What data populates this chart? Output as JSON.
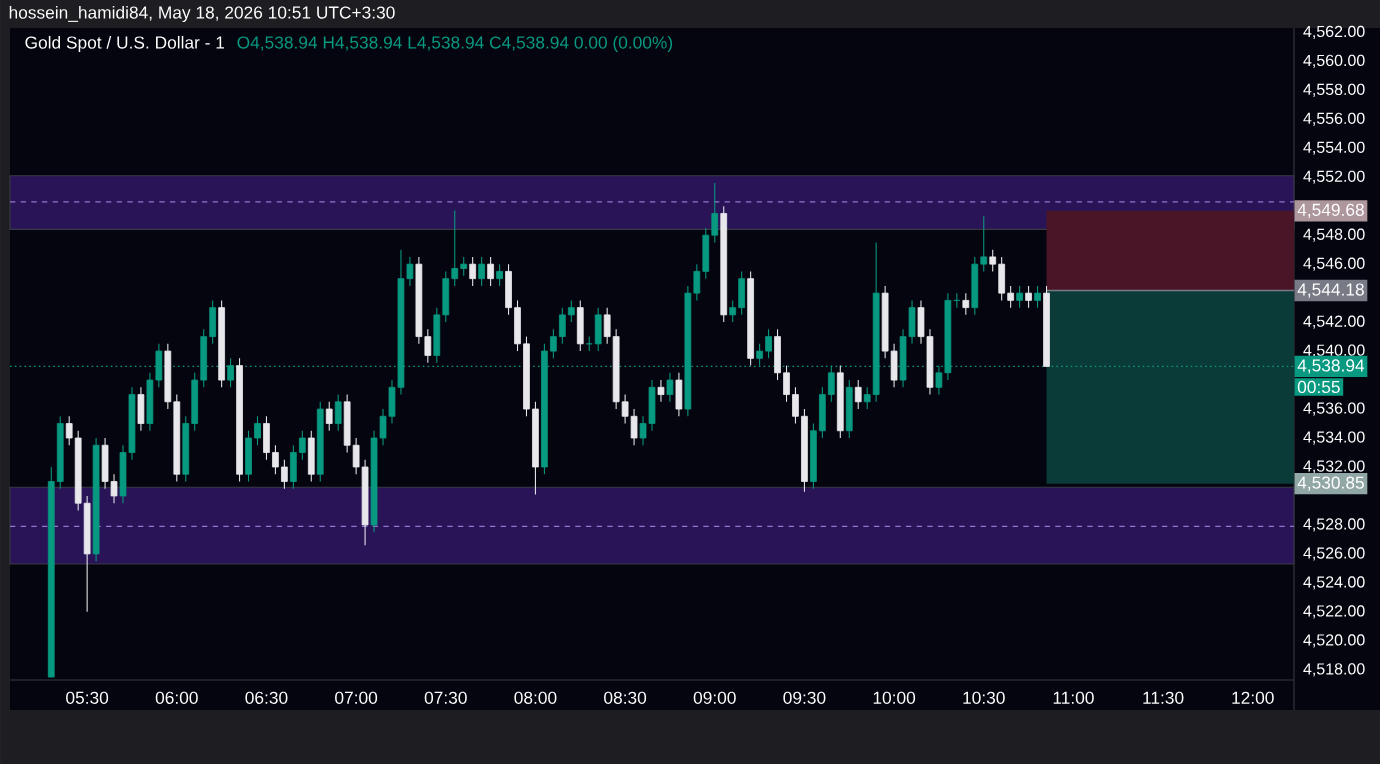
{
  "chart_data": {
    "type": "candlestick",
    "title": "Gold Spot / U.S. Dollar - 1",
    "subtitle": "O4,538.94 H4,538.94 L4,538.94 C4,538.94 0.00 (0.00%)",
    "annotations": [
      "hossein_hamidi84, May 18, 2026 10:51 UTC+3:30",
      "00:55"
    ],
    "x": [
      5.3,
      5.35,
      5.4,
      5.45,
      5.5,
      5.55,
      5.6,
      5.65,
      5.7,
      5.75,
      5.8,
      5.85,
      5.9,
      5.95,
      6.0,
      6.05,
      6.1,
      6.15,
      6.2,
      6.25,
      6.3,
      6.35,
      6.4,
      6.45,
      6.5,
      6.55,
      6.6,
      6.65,
      6.7,
      6.75,
      6.8,
      6.85,
      6.9,
      6.95,
      7.0,
      7.05,
      7.1,
      7.15,
      7.2,
      7.25,
      7.3,
      7.35,
      7.4,
      7.45,
      7.5,
      7.55,
      7.6,
      7.65,
      7.7,
      7.75,
      7.8,
      7.85,
      7.9,
      7.95,
      8.0,
      8.05,
      8.1,
      8.15,
      8.2,
      8.25,
      8.3,
      8.35,
      8.4,
      8.45,
      8.5,
      8.55,
      8.6,
      8.65,
      8.7,
      8.75,
      8.8,
      8.85,
      8.9,
      8.95,
      9.0,
      9.05,
      9.1,
      9.15,
      9.2,
      9.25,
      9.3,
      9.35,
      9.4,
      9.45,
      9.5,
      9.55,
      9.6,
      9.65,
      9.7,
      9.75,
      9.8,
      9.85,
      9.9,
      9.95,
      10.0,
      10.05,
      10.1,
      10.15,
      10.2,
      10.25,
      10.3,
      10.35,
      10.4,
      10.45,
      10.5,
      10.55,
      10.6,
      10.65,
      10.7,
      10.75,
      10.8,
      10.85
    ],
    "ohlc": [
      [
        4517.5,
        4532,
        4517.5,
        4531
      ],
      [
        4531,
        4535.5,
        4530.5,
        4535
      ],
      [
        4535,
        4535.5,
        4533.5,
        4534
      ],
      [
        4534,
        4534.5,
        4529,
        4529.5
      ],
      [
        4529.5,
        4530,
        4522,
        4526
      ],
      [
        4526,
        4534,
        4525.5,
        4533.5
      ],
      [
        4533.5,
        4534,
        4530.5,
        4531
      ],
      [
        4531,
        4531.5,
        4529.5,
        4530
      ],
      [
        4530,
        4533.5,
        4529.5,
        4533
      ],
      [
        4533,
        4537.5,
        4532.5,
        4537
      ],
      [
        4537,
        4537.5,
        4534.5,
        4535
      ],
      [
        4535,
        4538.5,
        4534.5,
        4538
      ],
      [
        4538,
        4540.5,
        4537.5,
        4540
      ],
      [
        4540,
        4540.5,
        4536,
        4536.5
      ],
      [
        4536.5,
        4537,
        4531,
        4531.5
      ],
      [
        4531.5,
        4535.5,
        4531,
        4535
      ],
      [
        4535,
        4538.5,
        4534.5,
        4538
      ],
      [
        4538,
        4541.5,
        4537.5,
        4541
      ],
      [
        4541,
        4543.5,
        4540.5,
        4543
      ],
      [
        4543,
        4543.5,
        4537.5,
        4538
      ],
      [
        4538,
        4539.5,
        4537.5,
        4539
      ],
      [
        4539,
        4539.5,
        4531,
        4531.5
      ],
      [
        4531.5,
        4534.5,
        4531,
        4534
      ],
      [
        4534,
        4535.5,
        4533.5,
        4535
      ],
      [
        4535,
        4535.5,
        4532.5,
        4533
      ],
      [
        4533,
        4533.5,
        4531.5,
        4532
      ],
      [
        4532,
        4532.5,
        4530.5,
        4531
      ],
      [
        4531,
        4533.5,
        4530.5,
        4533
      ],
      [
        4533,
        4534.5,
        4532.5,
        4534
      ],
      [
        4534,
        4534.5,
        4531,
        4531.5
      ],
      [
        4531.5,
        4536.5,
        4531,
        4536
      ],
      [
        4536,
        4536.5,
        4534.5,
        4535
      ],
      [
        4535,
        4537,
        4534.5,
        4536.5
      ],
      [
        4536.5,
        4537,
        4533,
        4533.5
      ],
      [
        4533.5,
        4534,
        4531.5,
        4532
      ],
      [
        4532,
        4532.5,
        4526.6,
        4528
      ],
      [
        4528,
        4534.5,
        4527.5,
        4534
      ],
      [
        4534,
        4536,
        4533.5,
        4535.5
      ],
      [
        4535.5,
        4538,
        4535,
        4537.5
      ],
      [
        4537.5,
        4547,
        4537,
        4545
      ],
      [
        4545,
        4546.5,
        4544.5,
        4546
      ],
      [
        4546,
        4546.5,
        4540.5,
        4541
      ],
      [
        4541,
        4541.5,
        4539.2,
        4539.7
      ],
      [
        4539.7,
        4543,
        4539.2,
        4542.5
      ],
      [
        4542.5,
        4545.5,
        4542,
        4545
      ],
      [
        4545,
        4549.7,
        4544.5,
        4545.7
      ],
      [
        4545.7,
        4546.5,
        4545.2,
        4546
      ],
      [
        4546,
        4546.5,
        4544.5,
        4545
      ],
      [
        4545,
        4546.5,
        4544.5,
        4546
      ],
      [
        4546,
        4546.5,
        4544.5,
        4545
      ],
      [
        4545,
        4546,
        4544.5,
        4545.5
      ],
      [
        4545.5,
        4546,
        4542.5,
        4543
      ],
      [
        4543,
        4543.5,
        4540,
        4540.5
      ],
      [
        4540.5,
        4541,
        4535.5,
        4536
      ],
      [
        4536,
        4536.5,
        4530.1,
        4532
      ],
      [
        4532,
        4540.5,
        4531.5,
        4540
      ],
      [
        4540,
        4541.5,
        4539.5,
        4541
      ],
      [
        4541,
        4543,
        4540.5,
        4542.5
      ],
      [
        4542.5,
        4543.5,
        4542,
        4543
      ],
      [
        4543,
        4543.5,
        4540,
        4540.5
      ],
      [
        4540.5,
        4541,
        4540,
        4540.5
      ],
      [
        4540.5,
        4543,
        4540,
        4542.5
      ],
      [
        4542.5,
        4543,
        4540.5,
        4541
      ],
      [
        4541,
        4541.5,
        4536,
        4536.5
      ],
      [
        4536.5,
        4537,
        4535,
        4535.5
      ],
      [
        4535.5,
        4536,
        4533.5,
        4534
      ],
      [
        4534,
        4535.5,
        4533.5,
        4535
      ],
      [
        4535,
        4538,
        4534.5,
        4537.5
      ],
      [
        4537.5,
        4538,
        4536.5,
        4537
      ],
      [
        4537,
        4538.5,
        4536.5,
        4538
      ],
      [
        4538,
        4538.5,
        4535.5,
        4536
      ],
      [
        4536,
        4544.5,
        4535.5,
        4544
      ],
      [
        4544,
        4546,
        4543.5,
        4545.5
      ],
      [
        4545.5,
        4548.5,
        4545,
        4548
      ],
      [
        4548,
        4551.6,
        4547.5,
        4549.5
      ],
      [
        4549.5,
        4550,
        4542,
        4542.5
      ],
      [
        4542.5,
        4543.5,
        4542,
        4543
      ],
      [
        4543,
        4545.5,
        4542.5,
        4545
      ],
      [
        4545,
        4545.5,
        4539,
        4539.5
      ],
      [
        4539.5,
        4540.5,
        4539,
        4540
      ],
      [
        4540,
        4541.5,
        4539.5,
        4541
      ],
      [
        4541,
        4541.5,
        4538,
        4538.5
      ],
      [
        4538.5,
        4539,
        4536.5,
        4537
      ],
      [
        4537,
        4537.5,
        4535,
        4535.5
      ],
      [
        4535.5,
        4536,
        4530.3,
        4531
      ],
      [
        4531,
        4535,
        4530.5,
        4534.5
      ],
      [
        4534.5,
        4537.5,
        4534,
        4537
      ],
      [
        4537,
        4539,
        4536.5,
        4538.5
      ],
      [
        4538.5,
        4539,
        4534,
        4534.5
      ],
      [
        4534.5,
        4538,
        4534,
        4537.5
      ],
      [
        4537.5,
        4538,
        4536,
        4536.5
      ],
      [
        4536.5,
        4537.5,
        4536,
        4537
      ],
      [
        4537,
        4547.5,
        4536.5,
        4544
      ],
      [
        4544,
        4544.5,
        4539.5,
        4540
      ],
      [
        4540,
        4540.5,
        4537.5,
        4538
      ],
      [
        4538,
        4541.5,
        4537.5,
        4541
      ],
      [
        4541,
        4543.5,
        4540.5,
        4543
      ],
      [
        4543,
        4543.5,
        4540.5,
        4541
      ],
      [
        4541,
        4541.5,
        4537,
        4537.5
      ],
      [
        4537.5,
        4539,
        4537,
        4538.5
      ],
      [
        4538.5,
        4544,
        4538,
        4543.5
      ],
      [
        4543.5,
        4544,
        4543,
        4543.5
      ],
      [
        4543.5,
        4544,
        4542.5,
        4543
      ],
      [
        4543,
        4546.5,
        4542.5,
        4546
      ],
      [
        4546,
        4549.3,
        4545.5,
        4546.5
      ],
      [
        4546.5,
        4547,
        4545.5,
        4546
      ],
      [
        4546,
        4546.5,
        4543.5,
        4544
      ],
      [
        4544,
        4544.5,
        4543,
        4543.5
      ],
      [
        4543.5,
        4544.5,
        4543,
        4544
      ],
      [
        4544,
        4544.5,
        4543,
        4543.5
      ],
      [
        4543.5,
        4544.5,
        4543,
        4544
      ],
      [
        4544,
        4544.5,
        4538.94,
        4538.94
      ]
    ],
    "xlim": [
      5.07,
      12.23
    ],
    "ylim": [
      4517.3,
      4562.3
    ],
    "xticks": [
      {
        "value": 5.5,
        "label": "05:30"
      },
      {
        "value": 6.0,
        "label": "06:00"
      },
      {
        "value": 6.5,
        "label": "06:30"
      },
      {
        "value": 7.0,
        "label": "07:00"
      },
      {
        "value": 7.5,
        "label": "07:30"
      },
      {
        "value": 8.0,
        "label": "08:00"
      },
      {
        "value": 8.5,
        "label": "08:30"
      },
      {
        "value": 9.0,
        "label": "09:00"
      },
      {
        "value": 9.5,
        "label": "09:30"
      },
      {
        "value": 10.0,
        "label": "10:00"
      },
      {
        "value": 10.5,
        "label": "10:30"
      },
      {
        "value": 11.0,
        "label": "11:00"
      },
      {
        "value": 11.5,
        "label": "11:30"
      },
      {
        "value": 12.0,
        "label": "12:00"
      }
    ],
    "yticks": [
      {
        "value": 4518,
        "label": "4,518.00"
      },
      {
        "value": 4520,
        "label": "4,520.00"
      },
      {
        "value": 4522,
        "label": "4,522.00"
      },
      {
        "value": 4524,
        "label": "4,524.00"
      },
      {
        "value": 4526,
        "label": "4,526.00"
      },
      {
        "value": 4528,
        "label": "4,528.00"
      },
      {
        "value": 4532,
        "label": "4,532.00"
      },
      {
        "value": 4534,
        "label": "4,534.00"
      },
      {
        "value": 4536,
        "label": "4,536.00"
      },
      {
        "value": 4540,
        "label": "4,540.00"
      },
      {
        "value": 4542,
        "label": "4,542.00"
      },
      {
        "value": 4546,
        "label": "4,546.00"
      },
      {
        "value": 4548,
        "label": "4,548.00"
      },
      {
        "value": 4552,
        "label": "4,552.00"
      },
      {
        "value": 4554,
        "label": "4,554.00"
      },
      {
        "value": 4556,
        "label": "4,556.00"
      },
      {
        "value": 4558,
        "label": "4,558.00"
      },
      {
        "value": 4560,
        "label": "4,560.00"
      },
      {
        "value": 4562,
        "label": "4,562.00"
      }
    ],
    "bands": [
      {
        "axis": "y",
        "from": 4548.4,
        "to": 4552.1,
        "color": "#2a1458"
      },
      {
        "axis": "y",
        "from": 4525.3,
        "to": 4530.6,
        "color": "#2a1458"
      },
      {
        "axis": "y",
        "from": 4544.18,
        "to": 4549.68,
        "label": "4,549.68",
        "color": "#4a1526"
      },
      {
        "axis": "y",
        "from": 4544.18,
        "to": 4530.85,
        "label": "4,530.85",
        "color": "#0b3b38"
      }
    ],
    "ref_lines": [
      {
        "axis": "y",
        "value": 4550.3,
        "color": "#9575cd",
        "line_style": "dashed"
      },
      {
        "axis": "y",
        "value": 4527.9,
        "color": "#9575cd",
        "line_style": "dashed"
      },
      {
        "axis": "y",
        "value": 4544.18,
        "label": "4,544.18",
        "color": "#787b86",
        "line_style": "solid"
      },
      {
        "axis": "y",
        "value": 4538.94,
        "label": "4,538.94",
        "color": "#089981",
        "line_style": "dotted"
      }
    ]
  }
}
